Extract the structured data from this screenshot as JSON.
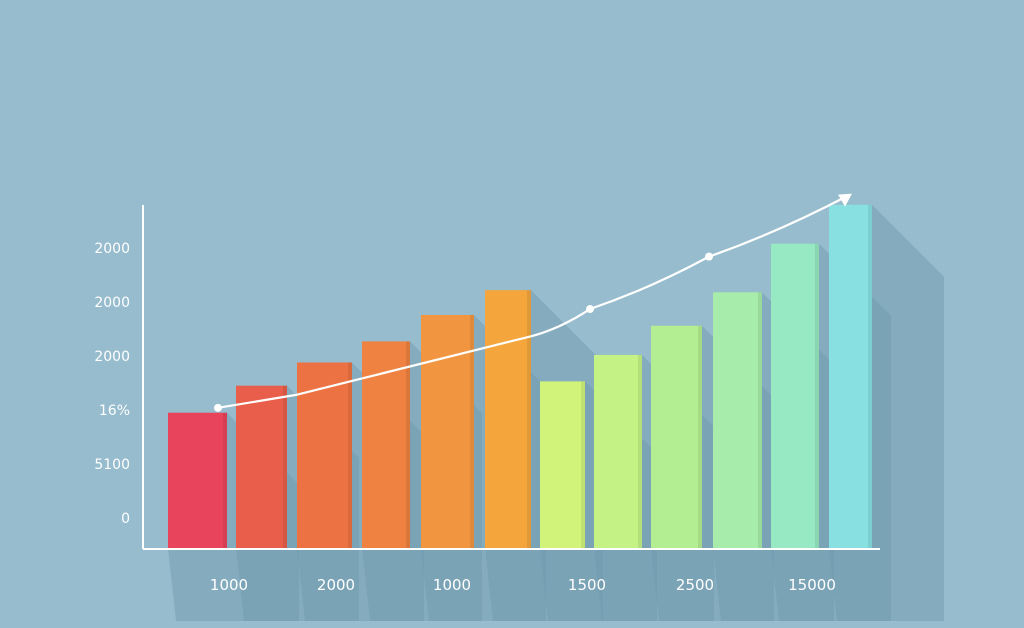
{
  "chart_data": {
    "type": "bar",
    "title": "",
    "xlabel": "",
    "ylabel": "",
    "y_tick_labels": [
      "0",
      "5100",
      "16%",
      "2000",
      "2000",
      "2000"
    ],
    "x_tick_labels": [
      "1000",
      "2000",
      "1000",
      "1500",
      "2500",
      "15000"
    ],
    "ylim": [
      0,
      6
    ],
    "values": [
      1.95,
      2.45,
      2.88,
      3.27,
      3.76,
      4.22,
      2.53,
      3.02,
      3.56,
      4.18,
      5.08,
      5.8
    ],
    "colors": [
      "#e8445c",
      "#e95e4a",
      "#ec7143",
      "#ef8241",
      "#f29541",
      "#f4a63d",
      "#d2f37a",
      "#c4f285",
      "#b4ee93",
      "#a7ecaa",
      "#96e9c3",
      "#88e0e1"
    ],
    "trend_line": {
      "points_y": [
        2.04,
        2.28,
        3.36,
        3.87,
        4.84,
        5.97
      ],
      "marker_points_y": [
        2.04,
        3.87,
        4.84
      ],
      "color": "#ffffff"
    },
    "grid": false,
    "legend": "none",
    "background": "#97bccd",
    "axis_color": "#ffffff"
  }
}
